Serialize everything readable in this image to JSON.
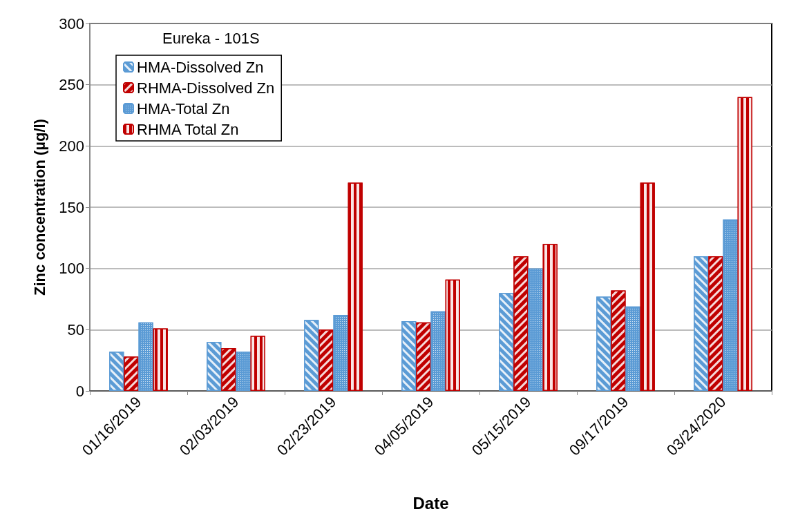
{
  "chart_data": {
    "type": "bar",
    "xlabel": "Date",
    "ylabel": "Zinc concentration (µg/l)",
    "legend_title": "Eureka - 101S",
    "categories": [
      "01/16/2019",
      "02/03/2019",
      "02/23/2019",
      "04/05/2019",
      "05/15/2019",
      "09/17/2019",
      "03/24/2020"
    ],
    "series": [
      {
        "name": "HMA-Dissolved Zn",
        "color": "#5b9bd5",
        "values": [
          32,
          40,
          58,
          57,
          80,
          77,
          110
        ]
      },
      {
        "name": "RHMA-Dissolved Zn",
        "color": "#c00000",
        "values": [
          28,
          35,
          50,
          56,
          110,
          82,
          110
        ]
      },
      {
        "name": "HMA-Total Zn",
        "color": "#5b9bd5",
        "values": [
          56,
          32,
          62,
          65,
          100,
          69,
          140
        ]
      },
      {
        "name": "RHMA Total Zn",
        "color": "#c00000",
        "values": [
          51,
          45,
          170,
          91,
          120,
          170,
          240
        ]
      }
    ],
    "ylim": [
      0,
      300
    ],
    "yticks": [
      0,
      50,
      100,
      150,
      200,
      250,
      300
    ],
    "grid": "y",
    "legend": "top left"
  }
}
